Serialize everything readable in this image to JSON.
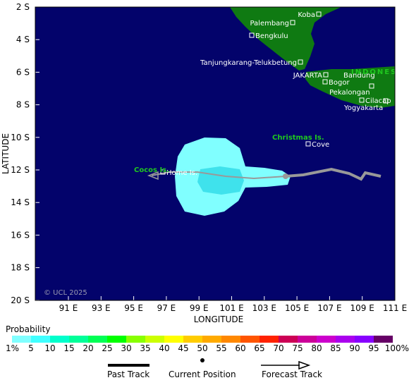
{
  "axes": {
    "x_label": "LONGITUDE",
    "y_label": "LATITUDE",
    "lon_ticks": [
      "91 E",
      "93 E",
      "95 E",
      "97 E",
      "99 E",
      "101 E",
      "103 E",
      "105 E",
      "107 E",
      "109 E",
      "111 E"
    ],
    "lat_ticks": [
      "2 S",
      "4 S",
      "6 S",
      "8 S",
      "10 S",
      "12 S",
      "14 S",
      "16 S",
      "18 S",
      "20 S"
    ]
  },
  "places": [
    "Koba",
    "Palembang",
    "Bengkulu",
    "Tanjungkarang-Telukbetung",
    "JAKARTA",
    "Bandung",
    "Bogor",
    "Pekalongan",
    "Cilacap",
    "Yogyakarta",
    "Cove",
    "Home Is."
  ],
  "regions": [
    "INDONES",
    "Christmas Is.",
    "Cocos Is."
  ],
  "copyright": "© UCL 2025",
  "legend": {
    "title": "Probability",
    "scale": [
      "1%",
      "5",
      "10",
      "15",
      "20",
      "25",
      "30",
      "35",
      "40",
      "45",
      "50",
      "55",
      "60",
      "65",
      "70",
      "75",
      "80",
      "85",
      "90",
      "95",
      "100%"
    ],
    "past": "Past Track",
    "current": "Current Position",
    "forecast": "Forecast Track"
  }
}
